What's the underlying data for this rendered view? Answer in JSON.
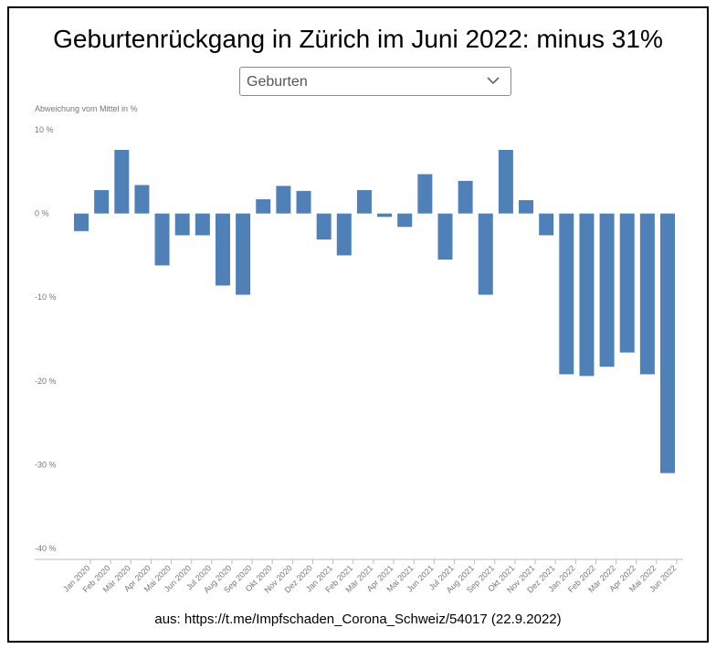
{
  "title": "Geburtenrückgang in Zürich im Juni 2022: minus 31%",
  "dropdown": {
    "selected": "Geburten",
    "icon": "chevron-down-icon"
  },
  "source": "aus: https://t.me/Impfschaden_Corona_Schweiz/54017 (22.9.2022)",
  "chart_data": {
    "type": "bar",
    "title": "",
    "ylabel": "Abweichung vom Mittel in %",
    "xlabel": "",
    "ylim": [
      -40,
      10
    ],
    "yticks": [
      10,
      0,
      -10,
      -20,
      -30,
      -40
    ],
    "ytick_labels": [
      "10 %",
      "0 %",
      "-10 %",
      "-20 %",
      "-30 %",
      "-40 %"
    ],
    "grid": false,
    "bar_color": "#4f81b8",
    "categories": [
      "Jan 2020",
      "Feb 2020",
      "Mär 2020",
      "Apr 2020",
      "Mai 2020",
      "Jun 2020",
      "Jul 2020",
      "Aug 2020",
      "Sep 2020",
      "Okt 2020",
      "Nov 2020",
      "Dez 2020",
      "Jan 2021",
      "Feb 2021",
      "Mär 2021",
      "Apr 2021",
      "Mai 2021",
      "Jun 2021",
      "Jul 2021",
      "Aug 2021",
      "Sep 2021",
      "Okt 2021",
      "Nov 2021",
      "Dez 2021",
      "Jan 2022",
      "Feb 2022",
      "Mär 2022",
      "Apr 2022",
      "Mai 2022",
      "Jun 2022"
    ],
    "values": [
      -2.1,
      2.8,
      7.6,
      3.4,
      -6.2,
      -2.6,
      -2.6,
      -8.6,
      -9.7,
      1.7,
      3.3,
      2.7,
      -3.1,
      -5.0,
      2.8,
      -0.4,
      -1.6,
      4.7,
      -5.5,
      3.9,
      -9.7,
      7.6,
      1.6,
      -2.6,
      -19.2,
      -19.4,
      -18.3,
      -16.6,
      -19.2,
      -31.0
    ]
  }
}
